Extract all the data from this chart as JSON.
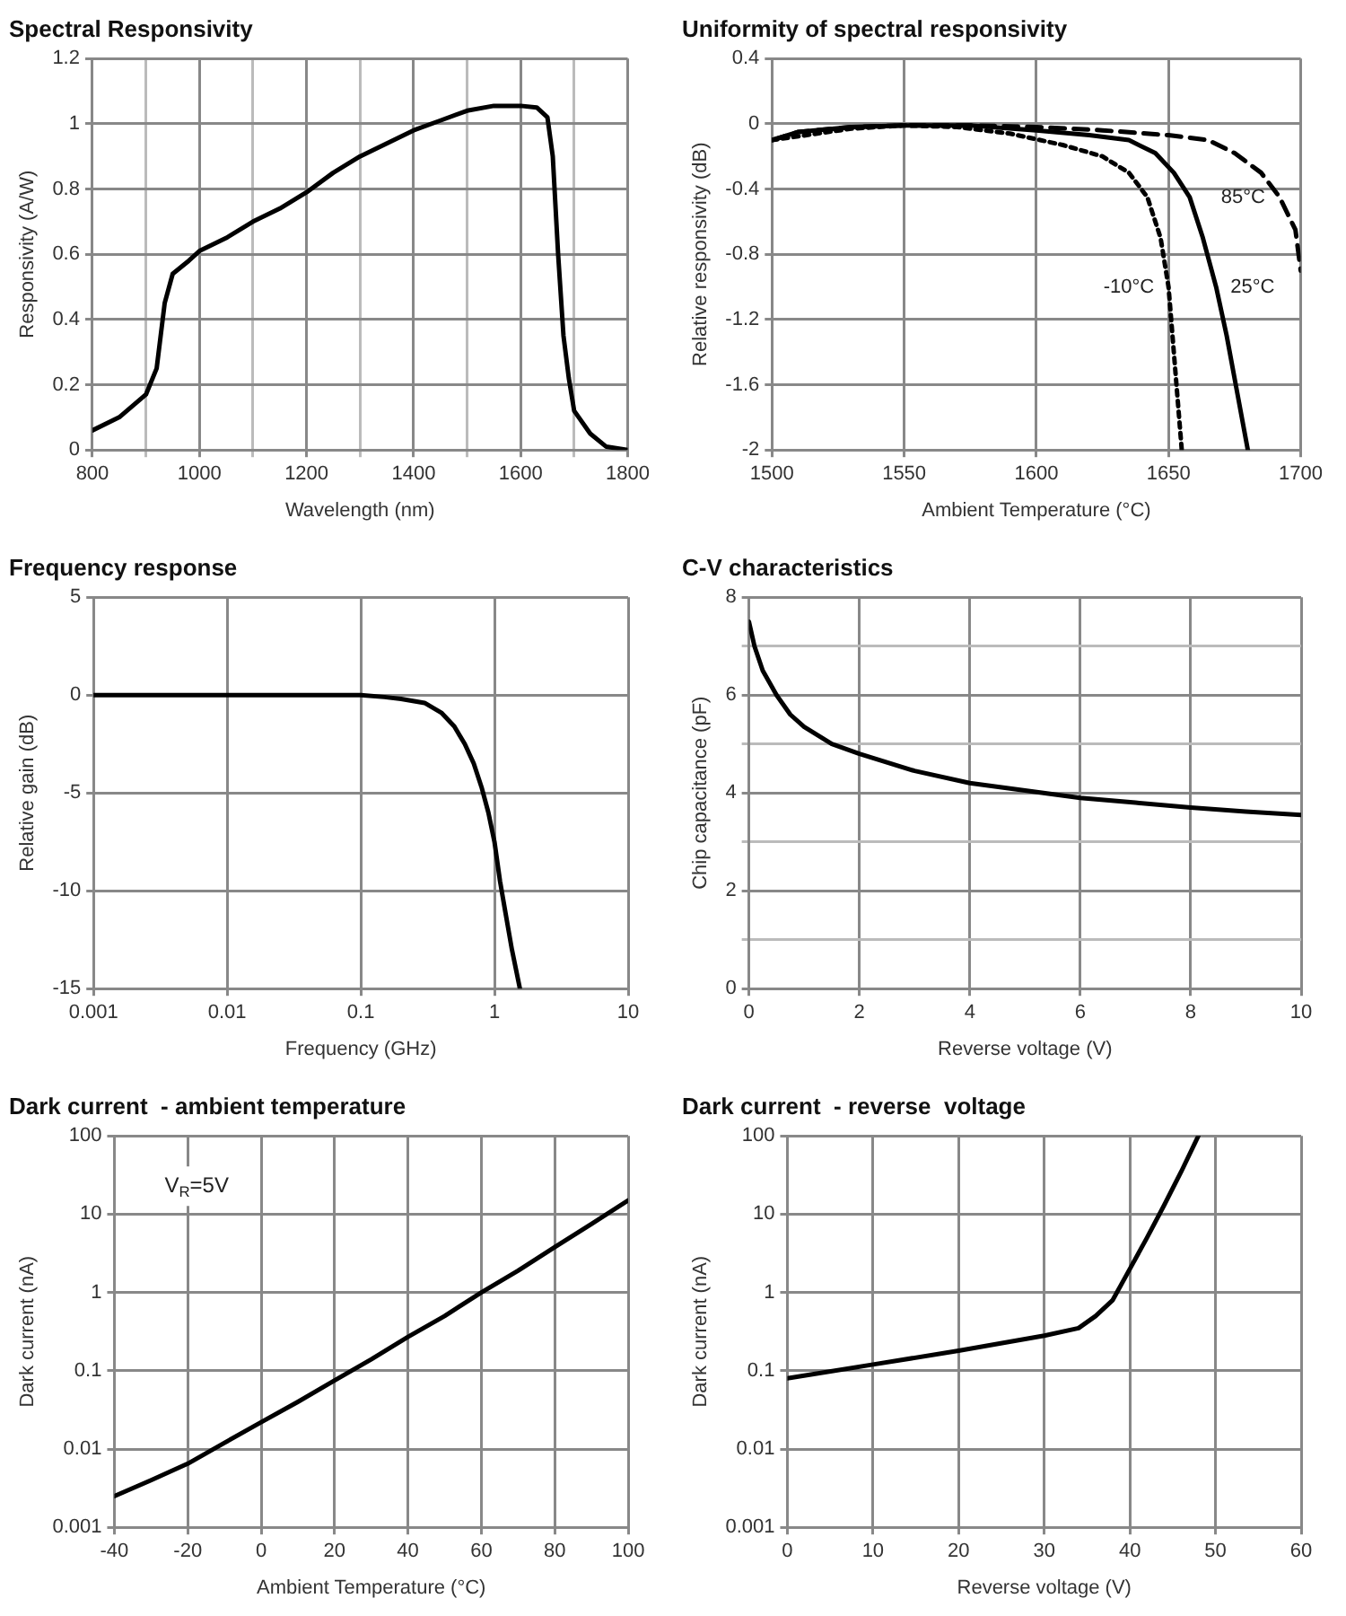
{
  "chart_data": [
    {
      "type": "line",
      "title": "Spectral Responsivity",
      "xlabel": "Wavelength (nm)",
      "ylabel": "Responsivity (A/W)",
      "color": "#000000",
      "grid": true,
      "x": [
        800,
        850,
        900,
        920,
        935,
        950,
        980,
        1000,
        1050,
        1100,
        1150,
        1200,
        1250,
        1300,
        1350,
        1400,
        1450,
        1500,
        1550,
        1600,
        1630,
        1650,
        1660,
        1670,
        1680,
        1690,
        1700,
        1730,
        1760,
        1800
      ],
      "values": [
        0.06,
        0.1,
        0.17,
        0.25,
        0.45,
        0.54,
        0.58,
        0.61,
        0.65,
        0.7,
        0.74,
        0.79,
        0.85,
        0.9,
        0.94,
        0.98,
        1.01,
        1.04,
        1.055,
        1.055,
        1.05,
        1.02,
        0.9,
        0.6,
        0.35,
        0.22,
        0.12,
        0.05,
        0.01,
        0
      ],
      "xlim": [
        800,
        1800
      ],
      "xticks": [
        800,
        {
          "value": 900,
          "label": null
        },
        1000,
        {
          "value": 1100,
          "label": null
        },
        1200,
        {
          "value": 1300,
          "label": null
        },
        1400,
        {
          "value": 1500,
          "label": null
        },
        1600,
        {
          "value": 1700,
          "label": null
        },
        1800
      ],
      "ylim": [
        0,
        1.2
      ],
      "yticks": [
        0,
        0.2,
        0.4,
        0.6,
        0.8,
        1,
        1.2
      ]
    },
    {
      "type": "line",
      "title": "Uniformity of spectral responsivity",
      "xlabel": "Ambient Temperature (°C)",
      "ylabel": "Relative responsivity (dB)",
      "grid": true,
      "series": [
        {
          "name": "85°C",
          "color": "#000000",
          "line_style": "dashed",
          "x": [
            1500,
            1510,
            1530,
            1550,
            1575,
            1600,
            1625,
            1650,
            1665,
            1675,
            1685,
            1692,
            1698,
            1700
          ],
          "values": [
            -0.1,
            -0.05,
            -0.02,
            -0.01,
            -0.01,
            -0.02,
            -0.04,
            -0.07,
            -0.1,
            -0.18,
            -0.3,
            -0.45,
            -0.65,
            -0.9
          ]
        },
        {
          "name": "25°C",
          "color": "#000000",
          "line_style": "solid",
          "x": [
            1500,
            1510,
            1530,
            1550,
            1575,
            1600,
            1620,
            1635,
            1645,
            1652,
            1658,
            1663,
            1668,
            1672,
            1676,
            1680
          ],
          "values": [
            -0.1,
            -0.05,
            -0.02,
            -0.01,
            -0.01,
            -0.04,
            -0.07,
            -0.1,
            -0.18,
            -0.3,
            -0.45,
            -0.7,
            -1,
            -1.3,
            -1.65,
            -2
          ]
        },
        {
          "name": "-10°C",
          "color": "#000000",
          "line_style": "dotted",
          "x": [
            1500,
            1530,
            1550,
            1570,
            1590,
            1610,
            1625,
            1635,
            1642,
            1647,
            1650,
            1652,
            1654,
            1655
          ],
          "values": [
            -0.1,
            -0.03,
            -0.01,
            -0.02,
            -0.06,
            -0.13,
            -0.2,
            -0.3,
            -0.45,
            -0.7,
            -1,
            -1.4,
            -1.8,
            -2
          ]
        }
      ],
      "xlim": [
        1500,
        1700
      ],
      "xticks": [
        1500,
        1550,
        1600,
        1650,
        1700
      ],
      "ylim": [
        -2,
        0.4
      ],
      "yticks": [
        -2,
        -1.6,
        -1.2,
        -0.8,
        -0.4,
        0,
        0.4
      ]
    },
    {
      "type": "line",
      "title": "Frequency response",
      "xlabel": "Frequency (GHz)",
      "ylabel": "Relative gain (dB)",
      "color": "#000000",
      "grid": true,
      "log": "x",
      "x": [
        0.001,
        0.01,
        0.1,
        0.15,
        0.2,
        0.3,
        0.4,
        0.5,
        0.6,
        0.7,
        0.8,
        0.9,
        1,
        1.1,
        1.2,
        1.35,
        1.55
      ],
      "values": [
        0,
        0,
        0,
        -0.1,
        -0.2,
        -0.4,
        -0.9,
        -1.6,
        -2.5,
        -3.5,
        -4.7,
        -6,
        -7.5,
        -9.5,
        -11,
        -13,
        -15
      ],
      "xlim": [
        0.001,
        10
      ],
      "xticks": [
        0.001,
        0.01,
        0.1,
        1,
        10
      ],
      "ylim": [
        -15,
        5
      ],
      "yticks": [
        -15,
        -10,
        -5,
        0,
        5
      ]
    },
    {
      "type": "line",
      "title": "C-V characteristics",
      "xlabel": "Reverse voltage (V)",
      "ylabel": "Chip capacitance (pF)",
      "color": "#000000",
      "grid": true,
      "x": [
        0,
        0.1,
        0.25,
        0.5,
        0.75,
        1,
        1.5,
        2,
        3,
        4,
        5,
        6,
        7,
        8,
        9,
        10
      ],
      "values": [
        7.5,
        7,
        6.5,
        6,
        5.6,
        5.35,
        5,
        4.8,
        4.45,
        4.2,
        4.05,
        3.9,
        3.8,
        3.7,
        3.62,
        3.55
      ],
      "xlim": [
        0,
        10
      ],
      "xticks": [
        0,
        2,
        4,
        6,
        8,
        10
      ],
      "ylim": [
        0,
        8
      ],
      "yticks": [
        0,
        {
          "value": 1,
          "label": null
        },
        2,
        {
          "value": 3,
          "label": null
        },
        4,
        {
          "value": 5,
          "label": null
        },
        6,
        {
          "value": 7,
          "label": null
        },
        8
      ]
    },
    {
      "type": "line",
      "title": "Dark current  - ambient temperature",
      "xlabel": "Ambient Temperature (°C)",
      "ylabel": "Dark current (nA)",
      "color": "#000000",
      "grid": true,
      "log": "y",
      "annotations": [
        "V$_{R}$=5V"
      ],
      "x": [
        -40,
        -30,
        -20,
        -10,
        0,
        10,
        20,
        30,
        40,
        50,
        60,
        70,
        80,
        90,
        100
      ],
      "values": [
        0.0025,
        0.004,
        0.0065,
        0.012,
        0.022,
        0.04,
        0.075,
        0.14,
        0.27,
        0.5,
        1,
        1.9,
        3.8,
        7.5,
        15
      ],
      "xlim": [
        -40,
        100
      ],
      "xticks": [
        -40,
        -20,
        0,
        20,
        40,
        60,
        80,
        100
      ],
      "ylim": [
        0.001,
        100
      ],
      "yticks": [
        0.001,
        0.01,
        0.1,
        1,
        10,
        100
      ]
    },
    {
      "type": "line",
      "title": "Dark current  - reverse  voltage",
      "xlabel": "Reverse voltage (V)",
      "ylabel": "Dark current (nA)",
      "color": "#000000",
      "grid": true,
      "log": "y",
      "x": [
        0,
        10,
        20,
        30,
        34,
        36,
        38,
        40,
        42,
        44,
        46,
        48
      ],
      "values": [
        0.08,
        0.12,
        0.18,
        0.28,
        0.35,
        0.5,
        0.8,
        2,
        5,
        13,
        35,
        100
      ],
      "xlim": [
        0,
        60
      ],
      "xticks": [
        0,
        10,
        20,
        30,
        40,
        50,
        60
      ],
      "ylim": [
        0.001,
        100
      ],
      "yticks": [
        0.001,
        0.01,
        0.1,
        1,
        10,
        100
      ]
    }
  ]
}
